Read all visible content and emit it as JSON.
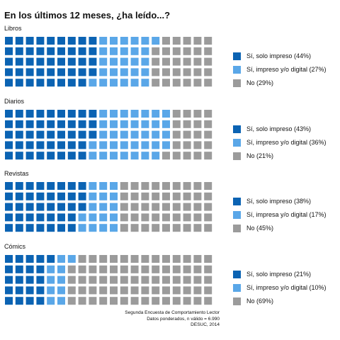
{
  "title": "En los últimos 12 meses, ¿ha leído...?",
  "colors": {
    "printed_only": "#0b63b3",
    "printed_or_digital": "#5aa7e8",
    "no": "#9b9b9b"
  },
  "chart_data": [
    {
      "type": "waffle",
      "title": "Libros",
      "categories": [
        "Sí, solo impreso",
        "Sí, impreso y/o digital",
        "No"
      ],
      "values": [
        44,
        27,
        29
      ],
      "legend": [
        "Sí, solo impreso (44%)",
        "Sí, impreso y/o digital (27%)",
        "No (29%)"
      ],
      "legend_position": "right"
    },
    {
      "type": "waffle",
      "title": "Diarios",
      "categories": [
        "Sí, solo impreso",
        "Sí, impreso y/o digital",
        "No"
      ],
      "values": [
        43,
        36,
        21
      ],
      "legend": [
        "Sí, solo impreso (43%)",
        "Sí, impreso y/o digital (36%)",
        "No (21%)"
      ],
      "legend_position": "right"
    },
    {
      "type": "waffle",
      "title": "Revistas",
      "categories": [
        "Sí, solo impreso",
        "Sí, impresa y/o digital",
        "No"
      ],
      "values": [
        38,
        17,
        45
      ],
      "legend": [
        "Sí, solo impreso (38%)",
        "Sí, impresa y/o digital (17%)",
        "No (45%)"
      ],
      "legend_position": "right"
    },
    {
      "type": "waffle",
      "title": "Cómics",
      "categories": [
        "Sí, solo impreso",
        "Sí, impreso y/o digital",
        "No"
      ],
      "values": [
        21,
        10,
        69
      ],
      "legend": [
        "Sí, solo impreso (21%)",
        "Sí, impreso y/o digital (10%)",
        "No (69%)"
      ],
      "legend_position": "right"
    }
  ],
  "source": [
    "Segunda Encuesta de Comportamiento Lector",
    "Datos ponderados, n válido = 6.990",
    "DESUC, 2014"
  ]
}
